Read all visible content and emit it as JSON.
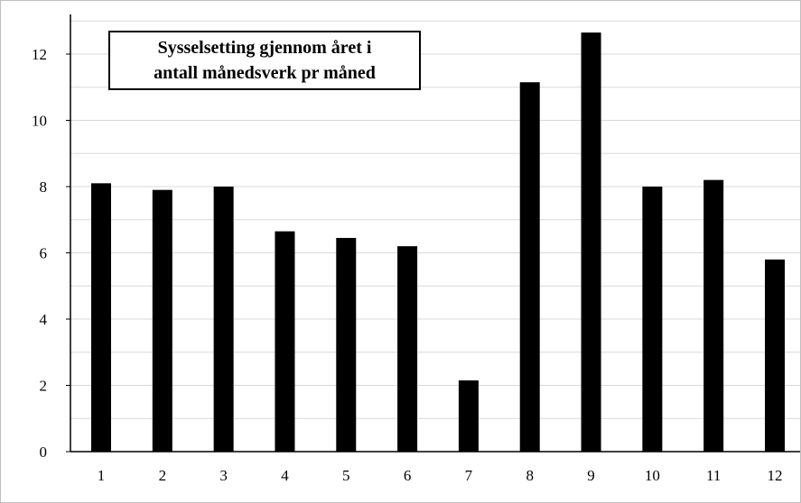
{
  "chart_data": {
    "type": "bar",
    "title_lines": [
      "Sysselsetting gjennom året i",
      "antall månedsverk pr måned"
    ],
    "categories": [
      "1",
      "2",
      "3",
      "4",
      "5",
      "6",
      "7",
      "8",
      "9",
      "10",
      "11",
      "12"
    ],
    "values": [
      8.1,
      7.9,
      8.0,
      6.65,
      6.45,
      6.2,
      2.15,
      11.15,
      12.65,
      8.0,
      8.2,
      5.8
    ],
    "xlabel": "",
    "ylabel": "",
    "ylim": [
      0,
      13
    ],
    "yticks": [
      0,
      2,
      4,
      6,
      8,
      10,
      12
    ],
    "grid": true,
    "legend": "none",
    "bar_color": "#000000",
    "grid_color": "#d9d9d9"
  }
}
